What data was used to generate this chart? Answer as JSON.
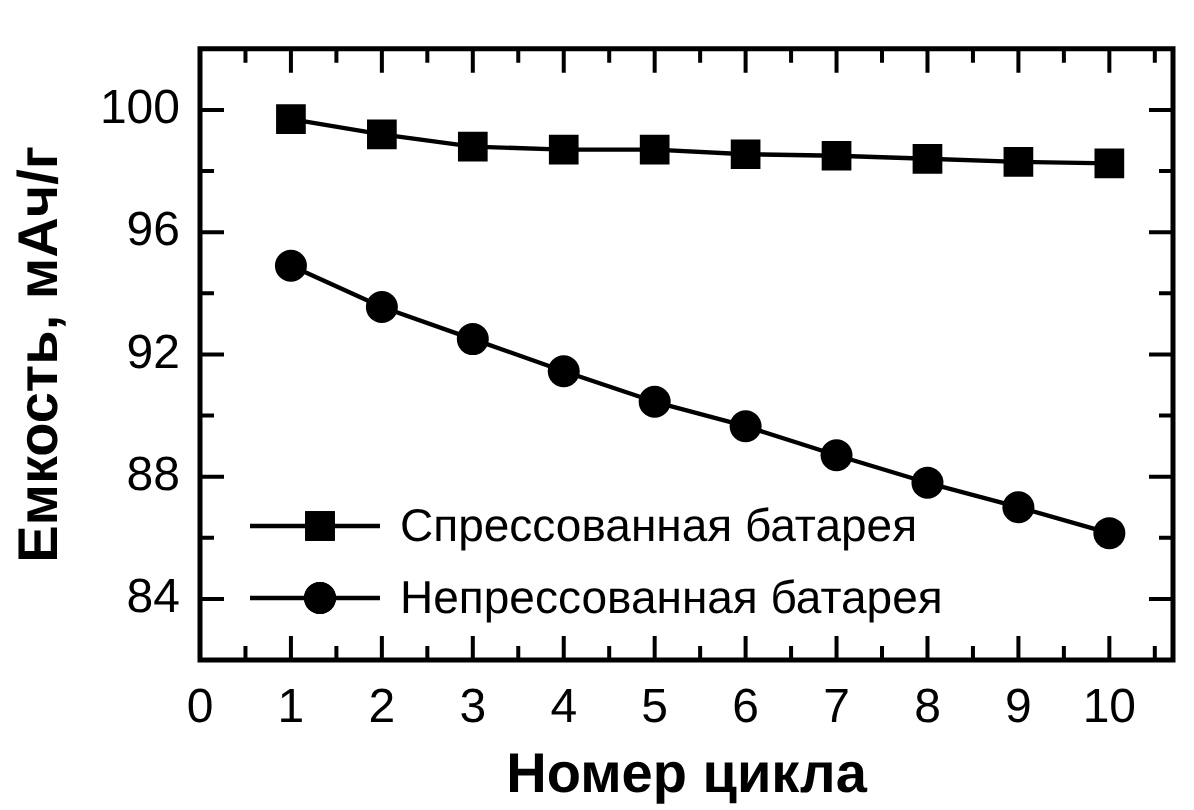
{
  "chart_data": {
    "type": "line",
    "xlabel": "Номер цикла",
    "ylabel": "Емкость, мАч/г",
    "x": [
      1,
      2,
      3,
      4,
      5,
      6,
      7,
      8,
      9,
      10
    ],
    "series": [
      {
        "name": "Спрессованная батарея",
        "color": "#000000",
        "marker": "square",
        "values": [
          99.7,
          99.2,
          98.8,
          98.7,
          98.7,
          98.55,
          98.5,
          98.4,
          98.3,
          98.25
        ]
      },
      {
        "name": "Непрессованная батарея",
        "color": "#000000",
        "marker": "circle",
        "values": [
          94.9,
          93.55,
          92.5,
          91.45,
          90.45,
          89.65,
          88.7,
          87.8,
          87.0,
          86.15
        ]
      }
    ],
    "xlim": [
      0,
      10.7
    ],
    "ylim": [
      82,
      102
    ],
    "xticks": [
      0,
      {
        "value": 0.5,
        "label": null
      },
      1,
      {
        "value": 1.5,
        "label": null
      },
      2,
      {
        "value": 2.5,
        "label": null
      },
      3,
      {
        "value": 3.5,
        "label": null
      },
      4,
      {
        "value": 4.5,
        "label": null
      },
      5,
      {
        "value": 5.5,
        "label": null
      },
      6,
      {
        "value": 6.5,
        "label": null
      },
      7,
      {
        "value": 7.5,
        "label": null
      },
      8,
      {
        "value": 8.5,
        "label": null
      },
      9,
      {
        "value": 9.5,
        "label": null
      },
      10,
      {
        "value": 10.5,
        "label": null
      }
    ],
    "yticks": [
      84,
      {
        "value": 86,
        "label": null
      },
      88,
      {
        "value": 90,
        "label": null
      },
      92,
      {
        "value": 94,
        "label": null
      },
      96,
      {
        "value": 98,
        "label": null
      },
      100
    ],
    "legend": "bottom left",
    "line_style": "solid"
  }
}
